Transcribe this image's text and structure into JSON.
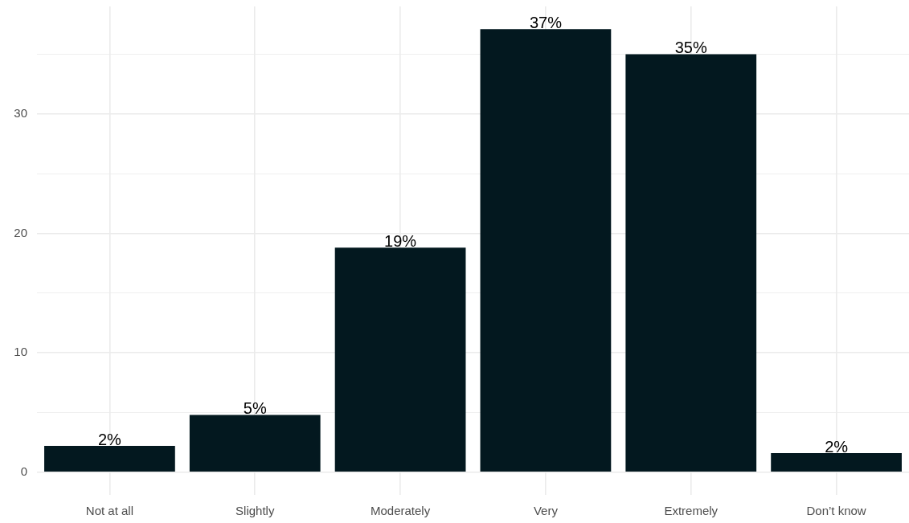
{
  "chart_data": {
    "type": "bar",
    "categories": [
      "Not at all",
      "Slightly",
      "Moderately",
      "Very",
      "Extremely",
      "Don’t know"
    ],
    "values": [
      2.2,
      4.8,
      18.8,
      37.1,
      35.0,
      1.6
    ],
    "color": "#03181f",
    "value_labels": [
      "2%",
      "5%",
      "19%",
      "37%",
      "35%",
      "2%"
    ],
    "ylim": [
      -1.9,
      39
    ],
    "yticks": [
      0,
      {
        "value": 5,
        "label": null
      },
      10,
      {
        "value": 15,
        "label": null
      },
      20,
      {
        "value": 25,
        "label": null
      },
      30,
      {
        "value": 35,
        "label": null
      }
    ],
    "grid": true
  }
}
